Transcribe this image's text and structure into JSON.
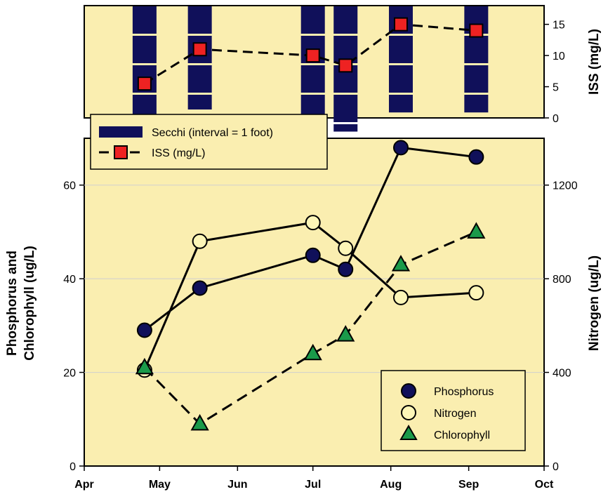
{
  "chart_data": [
    {
      "type": "bar+line",
      "panel": "top",
      "background": "#faeeb0",
      "x_categories_ticks": [
        "Apr",
        "May",
        "Jun",
        "Jul",
        "Aug",
        "Sep",
        "Oct"
      ],
      "ylabel_right": "ISS (mg/L)",
      "ylim_right": [
        0,
        18
      ],
      "yticks_right": [
        "0",
        "5",
        "10",
        "15"
      ],
      "secchi": {
        "name": "Secchi (interval = 1 foot)",
        "color": "#10105a",
        "bars": [
          {
            "date": "Apr 25",
            "depth_ft": 4.5
          },
          {
            "date": "May 17",
            "depth_ft": 3.5
          },
          {
            "date": "Jul 1",
            "depth_ft": 3.75
          },
          {
            "date": "Jul 14",
            "depth_ft": 4.25
          },
          {
            "date": "Aug 5",
            "depth_ft": 3.6
          },
          {
            "date": "Sep 4",
            "depth_ft": 3.6
          }
        ]
      },
      "iss": {
        "name": "ISS (mg/L)",
        "color": "#ee2222",
        "points": [
          {
            "date": "Apr 25",
            "y": 5.5
          },
          {
            "date": "May 17",
            "y": 11
          },
          {
            "date": "Jul 1",
            "y": 10
          },
          {
            "date": "Jul 14",
            "y": 8.4
          },
          {
            "date": "Aug 5",
            "y": 15
          },
          {
            "date": "Sep 4",
            "y": 14
          }
        ]
      }
    },
    {
      "type": "line",
      "panel": "bottom",
      "background": "#faeeb0",
      "xticks": [
        "Apr",
        "May",
        "Jun",
        "Jul",
        "Aug",
        "Sep",
        "Oct"
      ],
      "ylabel_left": "Phosphorus and Chlorophyll (ug/L)",
      "ylabel_left_lines": [
        "Phosphorus and",
        "Chlorophyll (ug/L)"
      ],
      "ylim_left": [
        0,
        70
      ],
      "yticks_left": [
        "0",
        "20",
        "40",
        "60"
      ],
      "ylabel_right": "Nitrogen (ug/L)",
      "ylim_right": [
        0,
        1400
      ],
      "yticks_right": [
        "0",
        "400",
        "800",
        "1200"
      ],
      "grid": "horizontal",
      "legend_position": "bottom-right",
      "series": [
        {
          "name": "Phosphorus",
          "axis": "left",
          "marker": "circle",
          "color": "#10105a",
          "dash": "solid",
          "points": [
            {
              "date": "Apr 25",
              "y": 29
            },
            {
              "date": "May 17",
              "y": 38
            },
            {
              "date": "Jul 1",
              "y": 45
            },
            {
              "date": "Jul 14",
              "y": 42
            },
            {
              "date": "Aug 5",
              "y": 68
            },
            {
              "date": "Sep 4",
              "y": 66
            }
          ]
        },
        {
          "name": "Nitrogen",
          "axis": "right",
          "marker": "circle",
          "color": "#fdf6b8",
          "dash": "solid",
          "points": [
            {
              "date": "Apr 25",
              "y": 410
            },
            {
              "date": "May 17",
              "y": 960
            },
            {
              "date": "Jul 1",
              "y": 1040
            },
            {
              "date": "Jul 14",
              "y": 930
            },
            {
              "date": "Aug 5",
              "y": 720
            },
            {
              "date": "Sep 4",
              "y": 740
            }
          ]
        },
        {
          "name": "Chlorophyll",
          "axis": "left",
          "marker": "triangle",
          "color": "#1a9a4a",
          "dash": "dashed",
          "points": [
            {
              "date": "Apr 25",
              "y": 21
            },
            {
              "date": "May 17",
              "y": 9
            },
            {
              "date": "Jul 1",
              "y": 24
            },
            {
              "date": "Jul 14",
              "y": 28
            },
            {
              "date": "Aug 5",
              "y": 43
            },
            {
              "date": "Sep 4",
              "y": 50
            }
          ]
        }
      ]
    }
  ]
}
